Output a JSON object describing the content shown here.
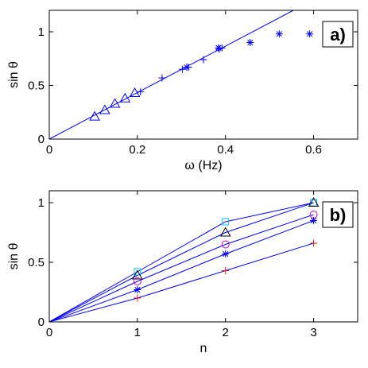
{
  "chart_data": [
    {
      "type": "scatter",
      "panel_label": "a)",
      "xlabel": "ω (Hz)",
      "ylabel": "sin θ",
      "xlim": [
        0,
        0.7
      ],
      "ylim": [
        0,
        1.2
      ],
      "xticks": [
        0,
        0.2,
        0.4,
        0.6
      ],
      "xtick_labels": [
        "0",
        "0.2",
        "0.4",
        "0.6"
      ],
      "yticks": [
        0,
        0.5,
        1
      ],
      "ytick_labels": [
        "0",
        "0.5",
        "1"
      ],
      "color": "#0000ff",
      "series": [
        {
          "marker": "triangle",
          "x": [
            0.103,
            0.126,
            0.149,
            0.172,
            0.194
          ],
          "y": [
            0.21,
            0.27,
            0.33,
            0.38,
            0.43
          ]
        },
        {
          "marker": "plus",
          "x": [
            0.207,
            0.256,
            0.302,
            0.316,
            0.35,
            0.386,
            0.392
          ],
          "y": [
            0.44,
            0.57,
            0.65,
            0.67,
            0.74,
            0.84,
            0.85
          ]
        },
        {
          "marker": "star",
          "x": [
            0.312,
            0.384,
            0.456,
            0.522,
            0.591
          ],
          "y": [
            0.67,
            0.85,
            0.9,
            0.98,
            0.98
          ]
        }
      ],
      "fit_line": {
        "x": [
          0,
          0.554
        ],
        "y": [
          0,
          1.2
        ]
      }
    },
    {
      "type": "line",
      "panel_label": "b)",
      "xlabel": "n",
      "ylabel": "sin θ",
      "xlim": [
        0,
        3.5
      ],
      "ylim": [
        0,
        1.1
      ],
      "xticks": [
        0,
        1,
        2,
        3
      ],
      "xtick_labels": [
        "0",
        "1",
        "2",
        "3"
      ],
      "yticks": [
        0,
        0.5,
        1
      ],
      "ytick_labels": [
        "0",
        "0.5",
        "1"
      ],
      "line_color": "#0000ff",
      "series": [
        {
          "marker": "square",
          "color": "#00bfff",
          "x": [
            0,
            1,
            2,
            3
          ],
          "y": [
            0,
            0.42,
            0.84,
            1.0
          ]
        },
        {
          "marker": "triangle",
          "color": "#000000",
          "x": [
            0,
            1,
            2,
            3
          ],
          "y": [
            0,
            0.39,
            0.75,
            1.0
          ]
        },
        {
          "marker": "circle",
          "color": "#c000c0",
          "x": [
            0,
            1,
            2,
            3
          ],
          "y": [
            0,
            0.34,
            0.65,
            0.9
          ]
        },
        {
          "marker": "star",
          "color": "#0000ff",
          "x": [
            0,
            1,
            2,
            3
          ],
          "y": [
            0,
            0.27,
            0.57,
            0.85
          ]
        },
        {
          "marker": "plus",
          "color": "#e01010",
          "x": [
            0,
            1,
            2,
            3
          ],
          "y": [
            0,
            0.2,
            0.43,
            0.66
          ]
        }
      ]
    }
  ]
}
